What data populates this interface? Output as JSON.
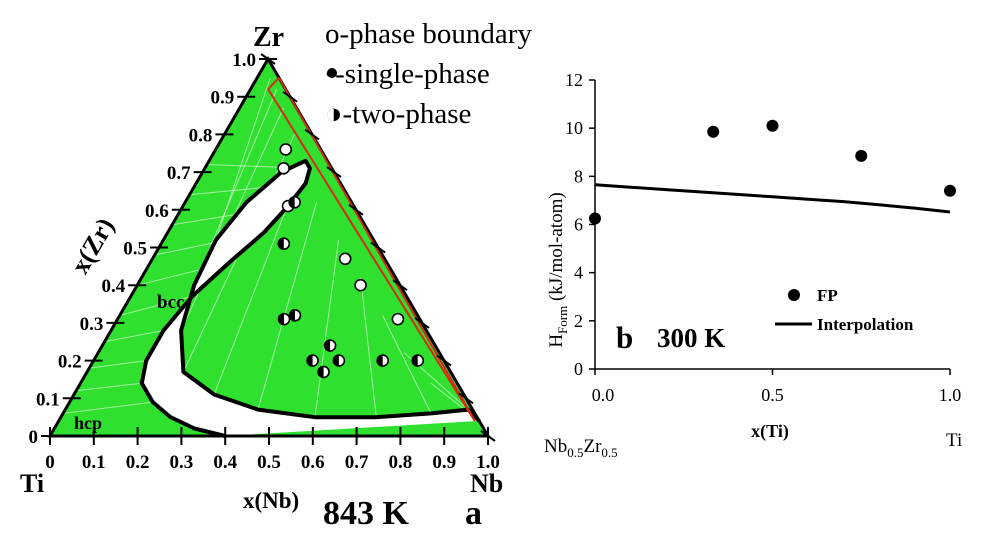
{
  "chart_data": [
    {
      "type": "ternary",
      "panel": "a",
      "temperature": "843 K",
      "corners": {
        "top": "Zr",
        "bottom_left": "Ti",
        "bottom_right": "Nb"
      },
      "left_axis_label": "x(Zr)",
      "bottom_axis_label": "x(Nb)",
      "ticks": [
        "0",
        "0.1",
        "0.2",
        "0.3",
        "0.4",
        "0.5",
        "0.6",
        "0.7",
        "0.8",
        "0.9",
        "1.0"
      ],
      "region_labels": {
        "bcc": "bcc",
        "hcp": "hcp"
      },
      "legend": [
        {
          "marker": "open-circle",
          "label": "o-phase boundary"
        },
        {
          "marker": "filled-circle",
          "label": "•-single-phase"
        },
        {
          "marker": "half-circle",
          "label": "◑-two-phase"
        }
      ],
      "phase_boundary": [
        {
          "x_nb": 0.4,
          "x_zr": 0.0
        },
        {
          "x_nb": 0.32,
          "x_zr": 0.02
        },
        {
          "x_nb": 0.25,
          "x_zr": 0.05
        },
        {
          "x_nb": 0.19,
          "x_zr": 0.09
        },
        {
          "x_nb": 0.14,
          "x_zr": 0.14
        },
        {
          "x_nb": 0.12,
          "x_zr": 0.2
        },
        {
          "x_nb": 0.12,
          "x_zr": 0.28
        },
        {
          "x_nb": 0.14,
          "x_zr": 0.37
        },
        {
          "x_nb": 0.18,
          "x_zr": 0.46
        },
        {
          "x_nb": 0.22,
          "x_zr": 0.54
        },
        {
          "x_nb": 0.24,
          "x_zr": 0.61
        },
        {
          "x_nb": 0.25,
          "x_zr": 0.67
        },
        {
          "x_nb": 0.24,
          "x_zr": 0.71
        },
        {
          "x_nb": 0.22,
          "x_zr": 0.73
        },
        {
          "x_nb": 0.18,
          "x_zr": 0.7
        },
        {
          "x_nb": 0.14,
          "x_zr": 0.62
        },
        {
          "x_nb": 0.12,
          "x_zr": 0.52
        },
        {
          "x_nb": 0.13,
          "x_zr": 0.4
        },
        {
          "x_nb": 0.16,
          "x_zr": 0.28
        },
        {
          "x_nb": 0.22,
          "x_zr": 0.17
        },
        {
          "x_nb": 0.32,
          "x_zr": 0.11
        },
        {
          "x_nb": 0.44,
          "x_zr": 0.07
        },
        {
          "x_nb": 0.58,
          "x_zr": 0.05
        },
        {
          "x_nb": 0.72,
          "x_zr": 0.05
        },
        {
          "x_nb": 0.84,
          "x_zr": 0.06
        },
        {
          "x_nb": 0.92,
          "x_zr": 0.07
        },
        {
          "x_nb": 0.96,
          "x_zr": 0.04
        }
      ],
      "red_lines": [
        {
          "from": {
            "x_nb": 0.04,
            "x_zr": 0.92
          },
          "to": {
            "x_nb": 0.05,
            "x_zr": 0.95
          }
        },
        {
          "from": {
            "x_nb": 0.04,
            "x_zr": 0.92
          },
          "to": {
            "x_nb": 0.95,
            "x_zr": 0.04
          }
        },
        {
          "from": {
            "x_nb": 0.05,
            "x_zr": 0.95
          },
          "to": {
            "x_nb": 0.95,
            "x_zr": 0.04
          }
        }
      ],
      "points": [
        {
          "x_nb": 0.16,
          "x_zr": 0.76,
          "type": "open"
        },
        {
          "x_nb": 0.18,
          "x_zr": 0.71,
          "type": "open"
        },
        {
          "x_nb": 0.24,
          "x_zr": 0.61,
          "type": "open"
        },
        {
          "x_nb": 0.44,
          "x_zr": 0.47,
          "type": "open"
        },
        {
          "x_nb": 0.51,
          "x_zr": 0.4,
          "type": "open"
        },
        {
          "x_nb": 0.64,
          "x_zr": 0.31,
          "type": "open"
        },
        {
          "x_nb": 0.25,
          "x_zr": 0.62,
          "type": "half"
        },
        {
          "x_nb": 0.28,
          "x_zr": 0.51,
          "type": "half"
        },
        {
          "x_nb": 0.38,
          "x_zr": 0.31,
          "type": "half"
        },
        {
          "x_nb": 0.4,
          "x_zr": 0.32,
          "type": "half"
        },
        {
          "x_nb": 0.52,
          "x_zr": 0.24,
          "type": "half"
        },
        {
          "x_nb": 0.5,
          "x_zr": 0.2,
          "type": "half"
        },
        {
          "x_nb": 0.56,
          "x_zr": 0.2,
          "type": "half"
        },
        {
          "x_nb": 0.54,
          "x_zr": 0.17,
          "type": "half"
        },
        {
          "x_nb": 0.66,
          "x_zr": 0.2,
          "type": "half"
        },
        {
          "x_nb": 0.74,
          "x_zr": 0.2,
          "type": "half"
        }
      ]
    },
    {
      "type": "scatter+line",
      "panel": "b",
      "temperature": "300 K",
      "xlabel": "x(Ti)",
      "ylabel_main": "H",
      "ylabel_sub": "Form",
      "ylabel_rest": " (kJ/mol-atom)",
      "xlim": [
        0,
        1
      ],
      "ylim": [
        0,
        12
      ],
      "xticks": [
        0,
        0.5,
        1
      ],
      "xtick_labels": [
        "0.0",
        "0.5",
        "1.0"
      ],
      "yticks": [
        0,
        2,
        4,
        6,
        8,
        10,
        12
      ],
      "xend_left": {
        "main": "Nb",
        "sub1": "0.5",
        "mid": "Zr",
        "sub2": "0.5"
      },
      "xend_right": "Ti",
      "series": [
        {
          "name": "FP",
          "kind": "scatter",
          "x": [
            0.0,
            0.333,
            0.5,
            0.75,
            1.0
          ],
          "y": [
            6.25,
            9.85,
            10.1,
            8.85,
            7.4
          ]
        },
        {
          "name": "Interpolation",
          "kind": "line",
          "x": [
            0.0,
            0.1,
            0.2,
            0.3,
            0.4,
            0.5,
            0.6,
            0.7,
            0.8,
            0.9,
            1.0
          ],
          "y": [
            7.65,
            7.55,
            7.45,
            7.35,
            7.25,
            7.15,
            7.05,
            6.95,
            6.82,
            6.68,
            6.52
          ]
        }
      ]
    }
  ]
}
